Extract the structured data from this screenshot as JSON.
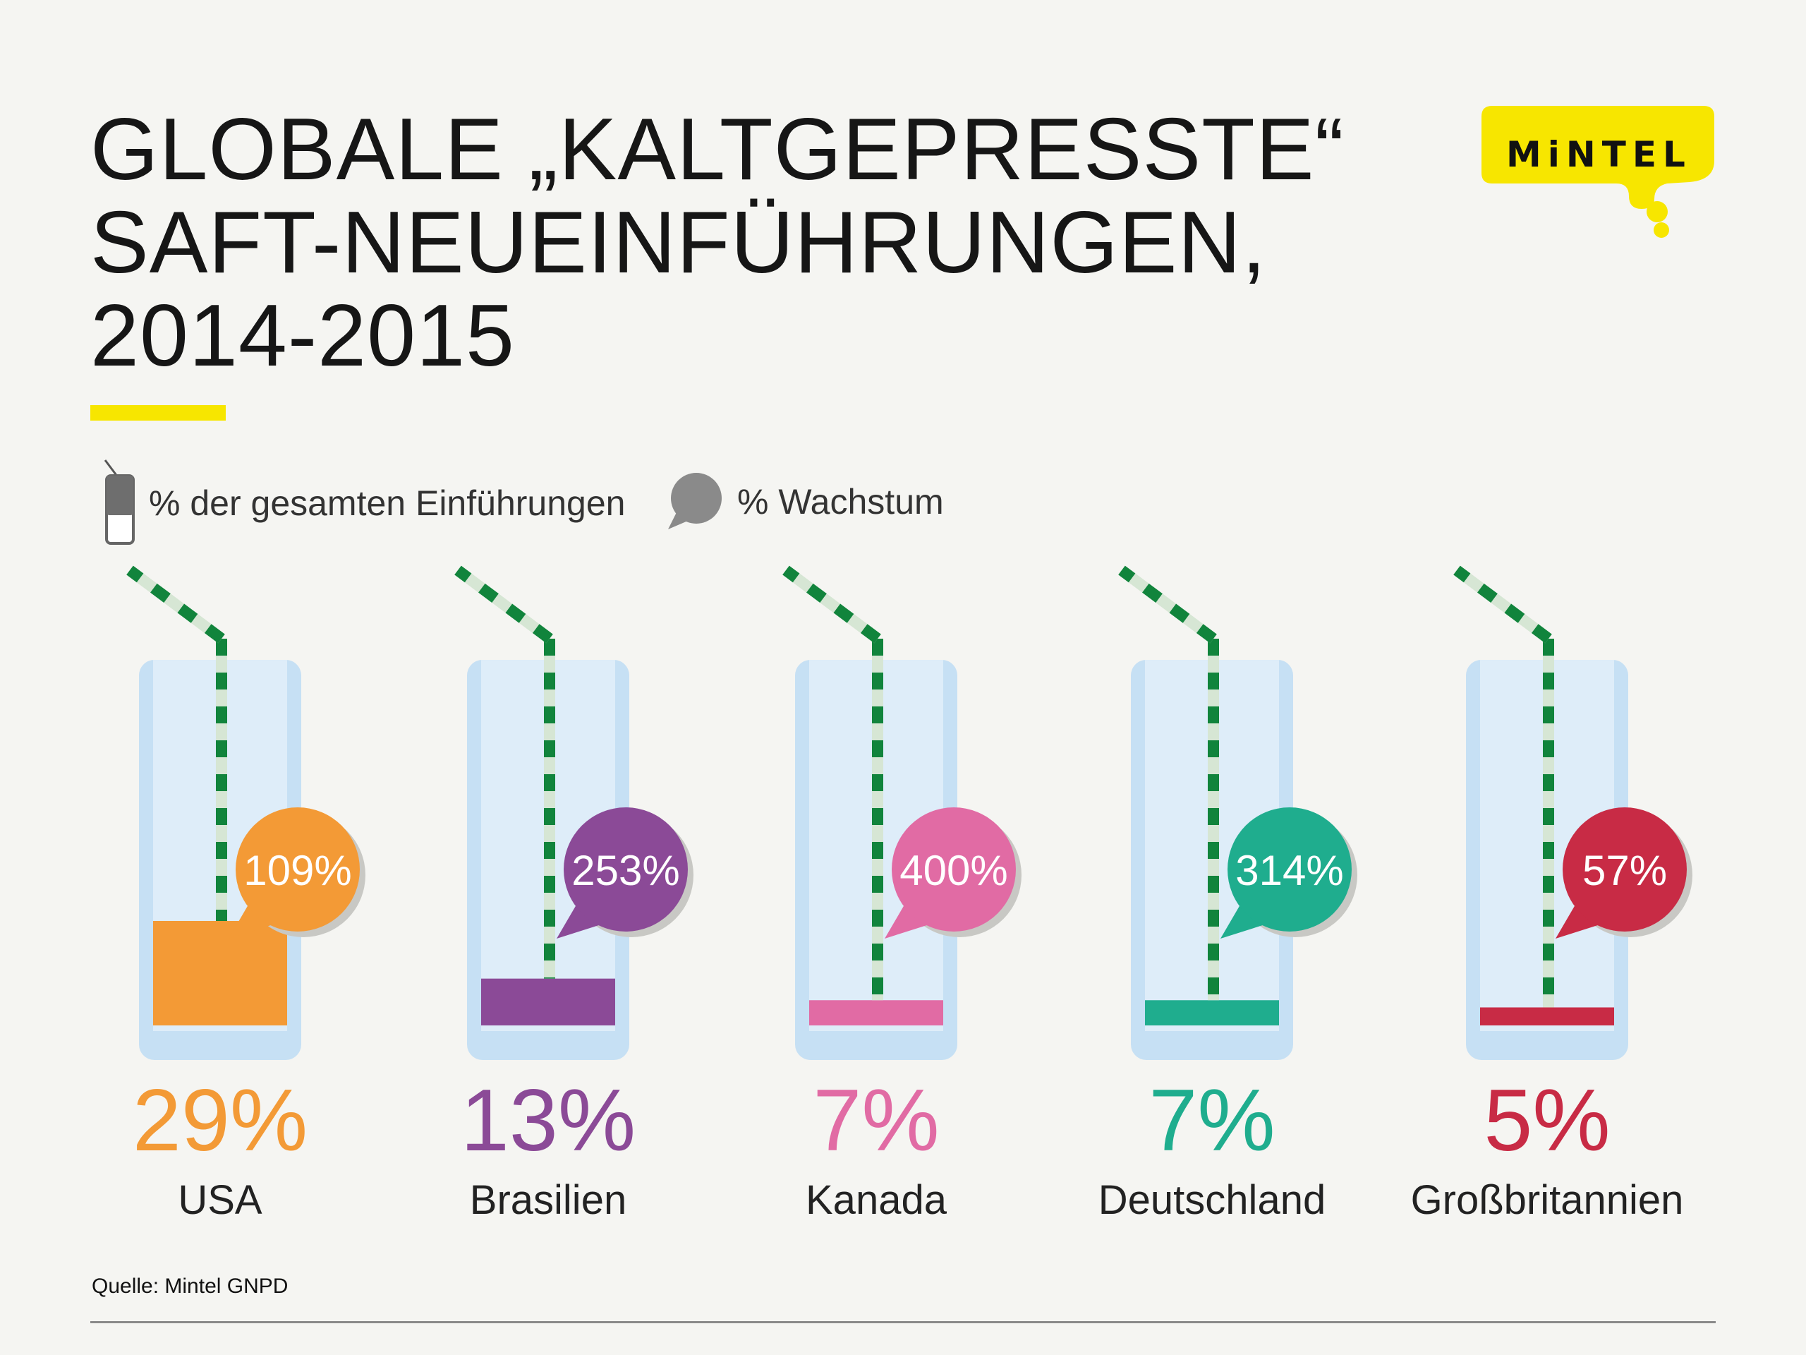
{
  "title": {
    "line1": "GLOBALE „KALTGEPRESSTE“",
    "line2": "SAFT-NEUEINFÜHRUNGEN,",
    "line3": "2014-2015"
  },
  "brand": {
    "name": "MiNTEL",
    "color": "#f7e600"
  },
  "legend": {
    "share_label": "% der gesamten Einführungen",
    "growth_label": "% Wachstum"
  },
  "source": "Quelle: Mintel GNPD",
  "chart_data": {
    "type": "bar",
    "title": "GLOBALE „KALTGEPRESSTE“ SAFT-NEUEINFÜHRUNGEN, 2014-2015",
    "categories": [
      "USA",
      "Brasilien",
      "Kanada",
      "Deutschland",
      "Großbritannien"
    ],
    "series": [
      {
        "name": "% der gesamten Einführungen",
        "values": [
          29,
          13,
          7,
          7,
          5
        ],
        "unit": "%"
      },
      {
        "name": "% Wachstum",
        "values": [
          109,
          253,
          400,
          314,
          57
        ],
        "unit": "%"
      }
    ],
    "share_labels": [
      "29%",
      "13%",
      "7%",
      "7%",
      "5%"
    ],
    "growth_labels": [
      "109%",
      "253%",
      "400%",
      "314%",
      "57%"
    ],
    "colors": [
      "#f39a36",
      "#8b4a97",
      "#e16ba4",
      "#1fad8e",
      "#c82b45"
    ]
  }
}
